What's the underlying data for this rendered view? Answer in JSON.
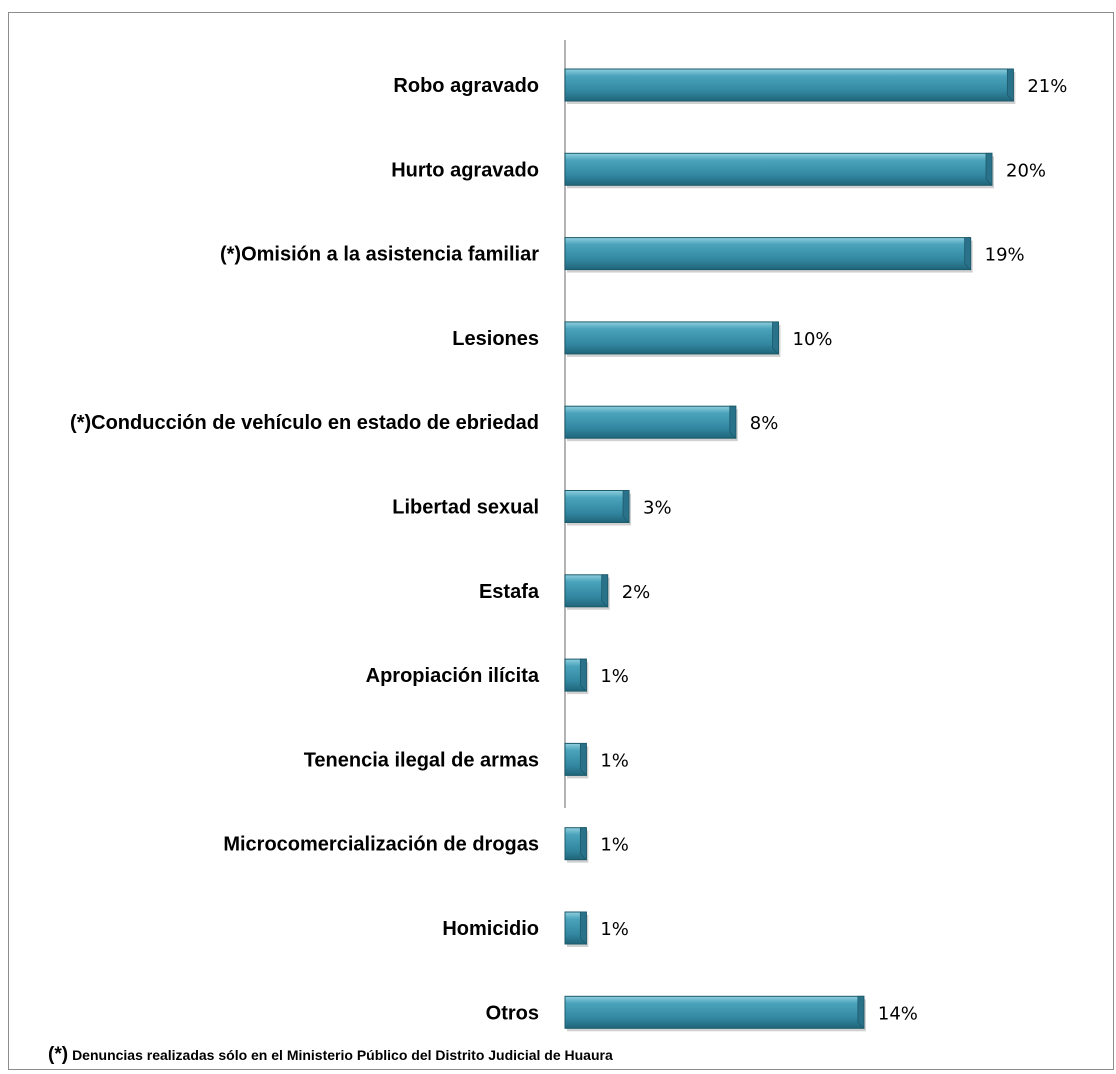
{
  "chart_data": {
    "type": "bar",
    "orientation": "horizontal",
    "categories": [
      "Robo agravado",
      "Hurto agravado",
      "(*)Omisión a la asistencia familiar",
      "Lesiones",
      "(*)Conducción de vehículo en estado de ebriedad",
      "Libertad sexual",
      "Estafa",
      "Apropiación ilícita",
      "Tenencia ilegal de armas",
      "Microcomercialización de drogas",
      "Homicidio",
      "Otros"
    ],
    "values": [
      21,
      20,
      19,
      10,
      8,
      3,
      2,
      1,
      1,
      1,
      1,
      14
    ],
    "data_labels": [
      "21%",
      "20%",
      "19%",
      "10%",
      "8%",
      "3%",
      "2%",
      "1%",
      "1%",
      "1%",
      "1%",
      "14%"
    ],
    "unit": "%",
    "bar_color": "#3a8ca4",
    "grid": false,
    "legend": "none"
  },
  "footnote": {
    "mark": "(*)",
    "text": "Denuncias realizadas sólo en el Ministerio Público del Distrito Judicial de Huaura"
  }
}
